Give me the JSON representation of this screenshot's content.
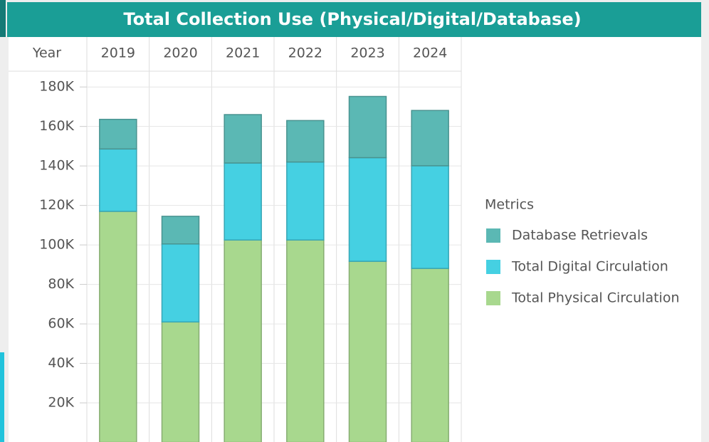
{
  "chart_data": {
    "type": "stacked_bar",
    "title": "Total Collection Use (Physical/Digital/Database)",
    "x_label": "Year",
    "legend_title": "Metrics",
    "categories": [
      "2019",
      "2020",
      "2021",
      "2022",
      "2023",
      "2024"
    ],
    "series": [
      {
        "name": "Total Physical Circulation",
        "color": "#a8d88e",
        "values": [
          117000,
          61000,
          102500,
          102500,
          91700,
          88100
        ]
      },
      {
        "name": "Total Digital Circulation",
        "color": "#45d0e2",
        "values": [
          31600,
          39500,
          39000,
          39500,
          52500,
          52000
        ]
      },
      {
        "name": "Database Retrievals",
        "color": "#5bb8b4",
        "values": [
          15000,
          14000,
          24500,
          21000,
          31000,
          28000
        ]
      }
    ],
    "ylim": [
      0,
      188000
    ],
    "yticks": [
      {
        "value": 20000,
        "label": "20K"
      },
      {
        "value": 40000,
        "label": "40K"
      },
      {
        "value": 60000,
        "label": "60K"
      },
      {
        "value": 80000,
        "label": "80K"
      },
      {
        "value": 100000,
        "label": "100K"
      },
      {
        "value": 120000,
        "label": "120K"
      },
      {
        "value": 140000,
        "label": "140K"
      },
      {
        "value": 160000,
        "label": "160K"
      },
      {
        "value": 180000,
        "label": "180K"
      }
    ],
    "grid": true,
    "legend": "right"
  }
}
